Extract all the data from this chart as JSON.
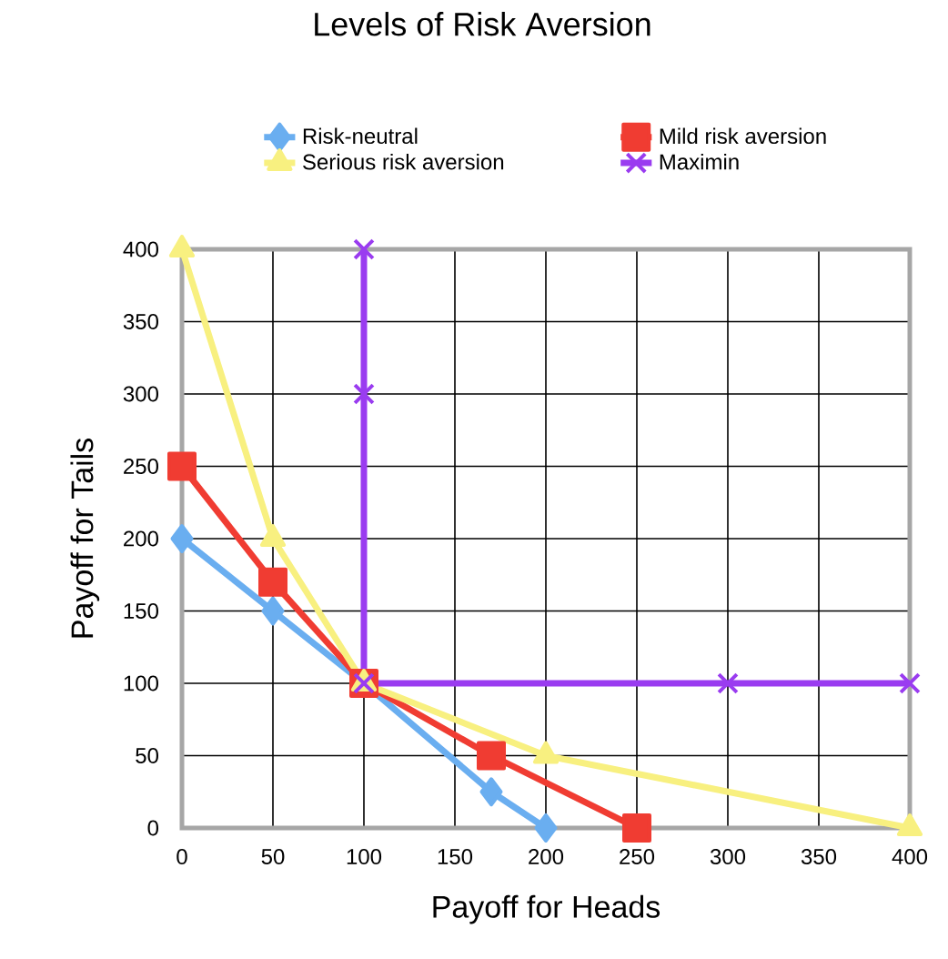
{
  "chart_data": {
    "type": "line",
    "title": "Levels of Risk Aversion",
    "xlabel": "Payoff for Heads",
    "ylabel": "Payoff for Tails",
    "series": [
      {
        "name": "Risk-neutral",
        "color": "#6aaef0",
        "marker": "diamond",
        "x": [
          0,
          50,
          100,
          170,
          200
        ],
        "values": [
          200,
          150,
          100,
          25,
          0
        ]
      },
      {
        "name": "Mild risk aversion",
        "color": "#f03c32",
        "marker": "square",
        "x": [
          0,
          50,
          100,
          170,
          250
        ],
        "values": [
          250,
          170,
          100,
          50,
          0
        ]
      },
      {
        "name": "Serious risk aversion",
        "color": "#f8f080",
        "marker": "triangle",
        "x": [
          0,
          50,
          100,
          200,
          400
        ],
        "values": [
          400,
          200,
          100,
          50,
          0
        ]
      },
      {
        "name": "Maximin",
        "color": "#9a3cf0",
        "marker": "cross",
        "x": [
          100,
          100,
          100,
          300,
          400
        ],
        "values": [
          400,
          300,
          100,
          100,
          100
        ]
      }
    ],
    "xlim": [
      0,
      400
    ],
    "ylim": [
      0,
      400
    ],
    "xticks": [
      0,
      50,
      100,
      150,
      200,
      250,
      300,
      350,
      400
    ],
    "yticks": [
      0,
      50,
      100,
      150,
      200,
      250,
      300,
      350,
      400
    ],
    "grid": true,
    "legend": "top"
  }
}
